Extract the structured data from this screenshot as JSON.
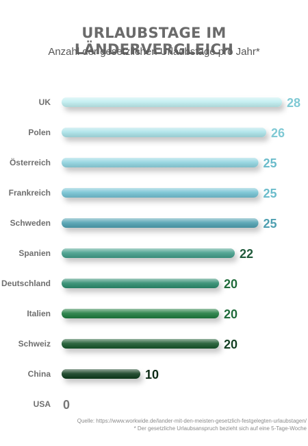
{
  "chart_data": {
    "type": "bar",
    "orientation": "horizontal",
    "title": "URLAUBSTAGE IM LÄNDERVERGLEICH",
    "subtitle": "Anzahl der gesetzlichen Urlaubstage pro Jahr*",
    "categories": [
      "UK",
      "Polen",
      "Österreich",
      "Frankreich",
      "Schweden",
      "Spanien",
      "Deutschland",
      "Italien",
      "Schweiz",
      "China",
      "USA"
    ],
    "values": [
      28,
      26,
      25,
      25,
      25,
      22,
      20,
      20,
      20,
      10,
      0
    ],
    "bar_colors": [
      "#bfeef0",
      "#a9e2e8",
      "#8ed3df",
      "#72c1d2",
      "#4e9fb0",
      "#3f9c88",
      "#2c8a6c",
      "#1f7a3e",
      "#12552c",
      "#0d3a1c",
      "#0d3a1c"
    ],
    "value_label_colors": [
      "#7fc9d4",
      "#7fc9d4",
      "#6bbccb",
      "#6bbccb",
      "#4e9fb0",
      "#1f5a3a",
      "#1f6b3a",
      "#1f6b3a",
      "#123f22",
      "#0b2a14",
      "#777777"
    ],
    "xlim": [
      0,
      28
    ],
    "grid": false,
    "legend": "none"
  },
  "footer": {
    "source": "Quelle: https://www.workwide.de/lander-mit-den-meisten-gesetzlich-festgelegten-urlaubstagen/",
    "note": "* Der gesetzliche Urlaubsanspruch bezieht sich auf eine 5-Tage-Woche"
  }
}
